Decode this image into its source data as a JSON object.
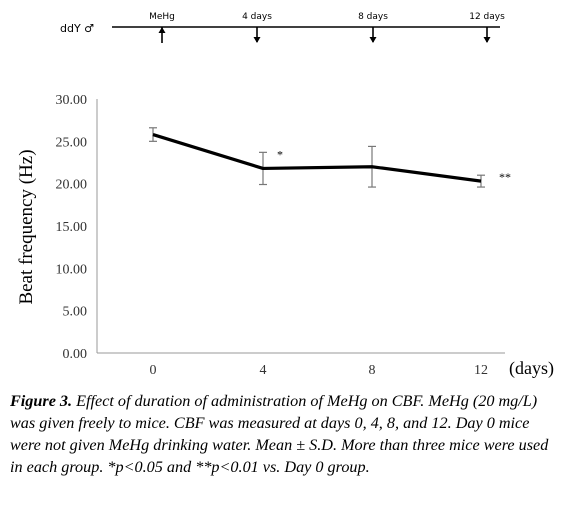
{
  "timeline": {
    "mouse": "ddY ♂",
    "events": [
      {
        "label": "MeHg",
        "day": 0,
        "arrow": "up"
      },
      {
        "label": "4 days",
        "day": 4,
        "arrow": "down"
      },
      {
        "label": "8 days",
        "day": 8,
        "arrow": "down"
      },
      {
        "label": "12 days",
        "day": 12,
        "arrow": "down"
      }
    ]
  },
  "chart_data": {
    "type": "line",
    "ylabel": "Beat frequency (Hz)",
    "xlabel": "(days)",
    "categories": [
      "0",
      "4",
      "8",
      "12"
    ],
    "ylim": [
      0,
      30
    ],
    "yticks": [
      "0.00",
      "5.00",
      "10.00",
      "15.00",
      "20.00",
      "25.00",
      "30.00"
    ],
    "grid": false,
    "series": [
      {
        "values": [
          25.8,
          21.8,
          22.0,
          20.3
        ],
        "errors": [
          0.8,
          1.9,
          2.4,
          0.7
        ],
        "color": "#000000"
      }
    ],
    "annotations": [
      {
        "category": "4",
        "text": "*"
      },
      {
        "category": "12",
        "text": "**"
      }
    ]
  },
  "caption": {
    "label": "Figure 3.",
    "text": " Effect of duration of administration of MeHg on CBF. MeHg (20 mg/L) was given freely to mice. CBF was measured at days 0, 4, 8, and 12. Day 0 mice were not given MeHg drinking water. Mean ± S.D. More than three mice were used in each group. *p<0.05 and **p<0.01 vs. Day 0 group."
  }
}
